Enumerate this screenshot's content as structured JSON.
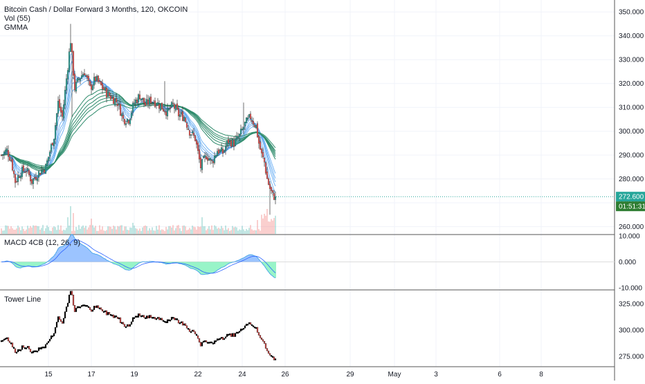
{
  "legend": {
    "symbol": "Bitcoin Cash / Dollar Forward 3 Months, 120, OKCOIN",
    "volume": "Vol (55)",
    "indicator": "GMMA"
  },
  "price_badge": "272.600",
  "countdown_badge": "01:51:31",
  "colors": {
    "up": "#26a69a",
    "down": "#ef5350",
    "gmma_short": "#5aa6f2",
    "gmma_long": "#2e8b6b",
    "macd_line": "#4ea8ea",
    "signal_line": "#2962ff",
    "hist_pos_rising": "#6fa8ff",
    "hist_neg": "#69f0ae",
    "badge_price": "#26a69a",
    "badge_countdown": "#2e7d32",
    "tower": "#000000"
  },
  "chart_data": [
    {
      "type": "candlestick",
      "pane": "price",
      "ylim": [
        257,
        355
      ],
      "yticks": [
        260,
        270,
        280,
        290,
        300,
        310,
        320,
        330,
        340,
        350
      ],
      "ytick_labels": [
        "260.000",
        "270.000",
        "280.000",
        "290.000",
        "300.000",
        "310.000",
        "320.000",
        "330.000",
        "340.000",
        "350.000"
      ],
      "current_price": 272.6,
      "keypoints": [
        [
          0,
          290
        ],
        [
          4,
          292
        ],
        [
          7,
          288
        ],
        [
          10,
          279
        ],
        [
          14,
          283
        ],
        [
          18,
          284
        ],
        [
          22,
          279
        ],
        [
          26,
          282
        ],
        [
          32,
          285
        ],
        [
          38,
          298
        ],
        [
          41,
          312
        ],
        [
          44,
          306
        ],
        [
          47,
          322
        ],
        [
          50,
          338
        ],
        [
          53,
          318
        ],
        [
          56,
          322
        ],
        [
          60,
          325
        ],
        [
          64,
          318
        ],
        [
          68,
          322
        ],
        [
          72,
          319
        ],
        [
          76,
          316
        ],
        [
          80,
          314
        ],
        [
          84,
          312
        ],
        [
          88,
          305
        ],
        [
          92,
          305
        ],
        [
          96,
          312
        ],
        [
          100,
          315
        ],
        [
          104,
          311
        ],
        [
          108,
          313
        ],
        [
          112,
          312
        ],
        [
          116,
          310
        ],
        [
          120,
          308
        ],
        [
          124,
          311
        ],
        [
          128,
          307
        ],
        [
          132,
          306
        ],
        [
          136,
          300
        ],
        [
          140,
          297
        ],
        [
          144,
          285
        ],
        [
          148,
          290
        ],
        [
          152,
          287
        ],
        [
          156,
          292
        ],
        [
          160,
          291
        ],
        [
          164,
          296
        ],
        [
          168,
          295
        ],
        [
          172,
          298
        ],
        [
          176,
          303
        ],
        [
          180,
          306
        ],
        [
          184,
          302
        ],
        [
          186,
          295
        ],
        [
          188,
          290
        ],
        [
          190,
          287
        ],
        [
          192,
          280
        ],
        [
          194,
          276
        ],
        [
          196,
          273
        ],
        [
          198,
          272.6
        ]
      ],
      "candle_count": 199,
      "gmma": "12 exponential moving averages, 6 short (lighter blue) and 6 long (green)"
    },
    {
      "type": "bar",
      "pane": "volume",
      "series": [
        {
          "name": "Vol (55)",
          "values": "per candle, with spikes near candles 50 and 190"
        }
      ]
    },
    {
      "type": "line",
      "pane": "macd",
      "title": "MACD 4CB (12, 26, 9)",
      "ylim": [
        -10,
        10
      ],
      "yticks": [
        -10,
        0,
        10
      ],
      "ytick_labels": [
        "-10.000",
        "0.000",
        "10.000"
      ],
      "series": [
        {
          "name": "MACD 4CB (12, 26, 9)",
          "values": "macd line derived from close"
        },
        {
          "name": "signal",
          "values": "9-period EMA of macd"
        },
        {
          "name": "histogram",
          "values": "macd - signal"
        }
      ]
    },
    {
      "type": "bar",
      "pane": "tower",
      "title": "Tower Line",
      "ylim": [
        265,
        338
      ],
      "yticks": [
        275,
        300,
        325
      ],
      "ytick_labels": [
        "275.000",
        "300.000",
        "325.000"
      ]
    }
  ],
  "x_axis": {
    "labels": [
      "15",
      "17",
      "19",
      "22",
      "24",
      "26",
      "29",
      "May",
      "3",
      "6",
      "8"
    ],
    "label_positions_candles": [
      34,
      65,
      96,
      142,
      174,
      205,
      252,
      284,
      314,
      360,
      390
    ]
  }
}
